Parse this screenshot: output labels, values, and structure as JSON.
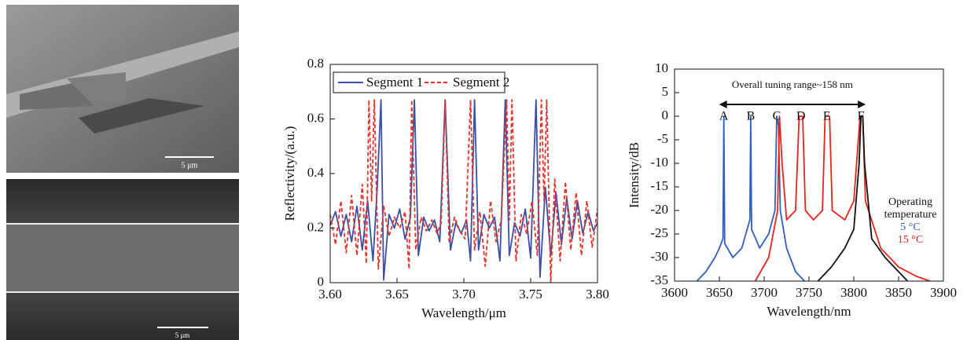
{
  "images": [
    {
      "scale_bar": "5 μm"
    },
    {
      "scale_bar": "5 μm"
    }
  ],
  "chart_data": [
    {
      "type": "line",
      "xlabel": "Wavelength/μm",
      "ylabel": "Reflectivity/(a.u.)",
      "legend": "upper left",
      "xlim": [
        3.6,
        3.8
      ],
      "ylim": [
        0,
        0.8
      ],
      "xticks": [
        {
          "value": 3.6,
          "label": "3.60"
        },
        3.65,
        {
          "value": 3.7,
          "label": "3.70"
        },
        3.75,
        {
          "value": 3.8,
          "label": "3.80"
        }
      ],
      "yticks": [
        0,
        0.2,
        0.4,
        0.6,
        0.8
      ],
      "series": [
        {
          "name": "Segment 1",
          "color": "#3a4fa8",
          "dashed": false,
          "x": [
            3.6,
            3.604,
            3.608,
            3.612,
            3.616,
            3.62,
            3.624,
            3.628,
            3.632,
            3.635,
            3.638,
            3.64,
            3.644,
            3.648,
            3.652,
            3.656,
            3.66,
            3.663,
            3.666,
            3.67,
            3.674,
            3.678,
            3.682,
            3.686,
            3.69,
            3.694,
            3.698,
            3.702,
            3.705,
            3.708,
            3.711,
            3.715,
            3.719,
            3.723,
            3.727,
            3.731,
            3.734,
            3.738,
            3.742,
            3.746,
            3.75,
            3.754,
            3.757,
            3.761,
            3.765,
            3.769,
            3.773,
            3.777,
            3.781,
            3.785,
            3.789,
            3.793,
            3.797,
            3.8
          ],
          "values": [
            0.21,
            0.26,
            0.17,
            0.25,
            0.15,
            0.28,
            0.12,
            0.3,
            0.08,
            0.33,
            0.67,
            0.01,
            0.25,
            0.2,
            0.27,
            0.16,
            0.24,
            0.67,
            0.1,
            0.24,
            0.19,
            0.23,
            0.15,
            0.67,
            0.12,
            0.22,
            0.18,
            0.23,
            0.08,
            0.67,
            0.12,
            0.25,
            0.2,
            0.24,
            0.08,
            0.67,
            0.1,
            0.22,
            0.17,
            0.27,
            0.09,
            0.67,
            0.02,
            0.35,
            0.1,
            0.33,
            0.14,
            0.31,
            0.16,
            0.3,
            0.18,
            0.26,
            0.19,
            0.22
          ]
        },
        {
          "name": "Segment 2",
          "color": "#e8322a",
          "dashed": true,
          "x": [
            3.6,
            3.604,
            3.608,
            3.612,
            3.616,
            3.62,
            3.624,
            3.627,
            3.629,
            3.631,
            3.633,
            3.636,
            3.64,
            3.644,
            3.648,
            3.652,
            3.656,
            3.659,
            3.661,
            3.664,
            3.668,
            3.672,
            3.676,
            3.68,
            3.683,
            3.686,
            3.689,
            3.693,
            3.697,
            3.701,
            3.705,
            3.708,
            3.712,
            3.716,
            3.72,
            3.724,
            3.728,
            3.732,
            3.734,
            3.736,
            3.739,
            3.743,
            3.747,
            3.751,
            3.755,
            3.758,
            3.76,
            3.762,
            3.765,
            3.768,
            3.772,
            3.776,
            3.78,
            3.784,
            3.788,
            3.792,
            3.796,
            3.8
          ],
          "values": [
            0.25,
            0.14,
            0.3,
            0.11,
            0.32,
            0.1,
            0.36,
            0.07,
            0.67,
            0.3,
            0.67,
            0.05,
            0.28,
            0.17,
            0.24,
            0.2,
            0.26,
            0.05,
            0.67,
            0.12,
            0.24,
            0.19,
            0.23,
            0.18,
            0.22,
            0.67,
            0.15,
            0.24,
            0.19,
            0.16,
            0.67,
            0.12,
            0.26,
            0.06,
            0.3,
            0.15,
            0.23,
            0.67,
            0.23,
            0.67,
            0.08,
            0.25,
            0.18,
            0.3,
            0.1,
            0.67,
            0.3,
            0.67,
            0.0,
            0.38,
            0.08,
            0.37,
            0.12,
            0.33,
            0.1,
            0.3,
            0.13,
            0.27
          ]
        }
      ]
    },
    {
      "type": "line",
      "xlabel": "Wavelength/nm",
      "ylabel": "Intensity/dB",
      "legend": "right",
      "legend_title": "Operating temperature",
      "xlim": [
        3600,
        3900
      ],
      "ylim": [
        -35,
        10
      ],
      "xticks": [
        3600,
        3650,
        3700,
        3750,
        3800,
        3850,
        3900
      ],
      "yticks": [
        -35,
        -30,
        -25,
        -20,
        -15,
        -10,
        -5,
        0,
        5,
        10
      ],
      "annotation": "Overall tuning range~158 nm",
      "peak_labels": [
        {
          "text": "A",
          "x": 3655
        },
        {
          "text": "B",
          "x": 3685
        },
        {
          "text": "C",
          "x": 3714
        },
        {
          "text": "D",
          "x": 3741
        },
        {
          "text": "E",
          "x": 3770
        },
        {
          "text": "F",
          "x": 3808
        }
      ],
      "series": [
        {
          "name": "5 °C",
          "color": "#2f5fc4",
          "x": [
            3625,
            3635,
            3645,
            3650,
            3654,
            3655,
            3656,
            3665,
            3675,
            3684,
            3685,
            3686,
            3695,
            3705,
            3712,
            3714,
            3716,
            3718,
            3725,
            3735,
            3745
          ],
          "values": [
            -35,
            -33,
            -30,
            -28,
            -26,
            0,
            -27,
            -30,
            -28,
            -22,
            0,
            -24,
            -28,
            -25,
            -20,
            0,
            -2,
            -20,
            -28,
            -33,
            -35
          ]
        },
        {
          "name": "15 °C",
          "color": "#e8241c",
          "x": [
            3690,
            3705,
            3715,
            3717,
            3720,
            3725,
            3735,
            3739,
            3743,
            3746,
            3755,
            3765,
            3768,
            3773,
            3776,
            3790,
            3800,
            3807,
            3810,
            3813,
            3830,
            3850,
            3870,
            3885
          ],
          "values": [
            -35,
            -30,
            -20,
            0,
            -10,
            -22,
            -20,
            0,
            0,
            -20,
            -22,
            -20,
            0,
            0,
            -20,
            -22,
            -18,
            0,
            0,
            -18,
            -28,
            -32,
            -34,
            -35
          ]
        },
        {
          "color": "#111111",
          "x": [
            3760,
            3775,
            3790,
            3800,
            3806,
            3808,
            3810,
            3812,
            3820,
            3835,
            3850,
            3860
          ],
          "values": [
            -35,
            -32,
            -28,
            -24,
            -10,
            0,
            0,
            -10,
            -26,
            -30,
            -33,
            -35
          ]
        }
      ]
    }
  ]
}
